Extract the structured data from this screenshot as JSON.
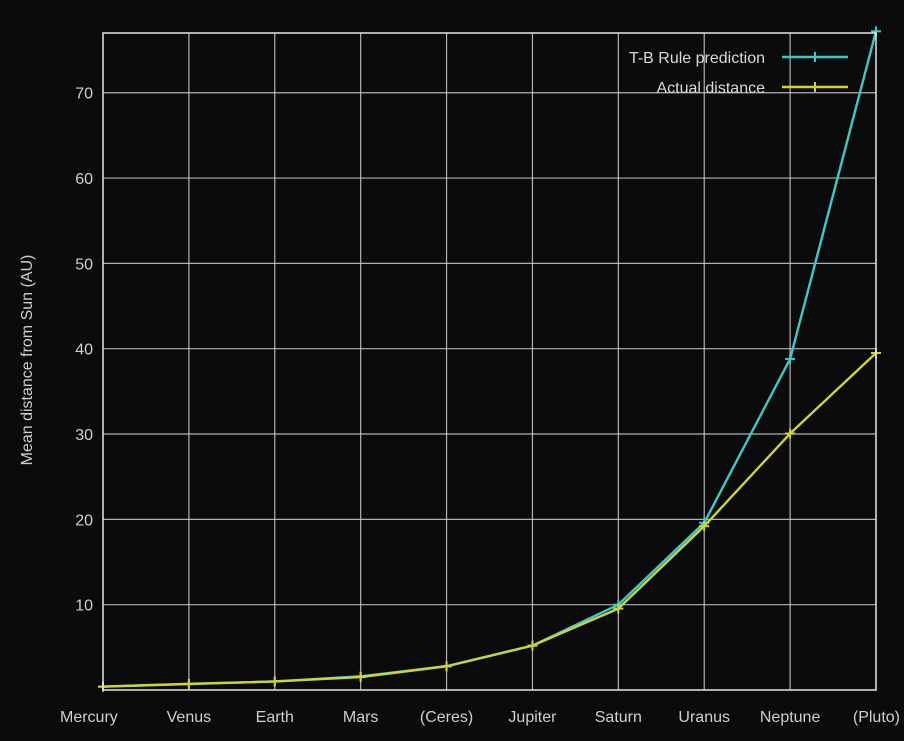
{
  "chart_data": {
    "type": "line",
    "title": "",
    "xlabel": "",
    "ylabel": "Mean distance from Sun (AU)",
    "categories": [
      "Mercury",
      "Venus",
      "Earth",
      "Mars",
      "(Ceres)",
      "Jupiter",
      "Saturn",
      "Uranus",
      "Neptune",
      "(Pluto)"
    ],
    "ylim": [
      0,
      77
    ],
    "yticks": [
      10,
      20,
      30,
      40,
      50,
      60,
      70
    ],
    "grid": true,
    "legend_position": "top-right",
    "series": [
      {
        "name": "T-B Rule prediction",
        "color": "#3ec9c9",
        "values": [
          0.4,
          0.7,
          1.0,
          1.6,
          2.8,
          5.2,
          10.0,
          19.6,
          38.8,
          77.2
        ]
      },
      {
        "name": "Actual distance",
        "color": "#cfd23a",
        "values": [
          0.39,
          0.72,
          1.0,
          1.52,
          2.77,
          5.2,
          9.54,
          19.2,
          30.06,
          39.5
        ]
      }
    ]
  }
}
